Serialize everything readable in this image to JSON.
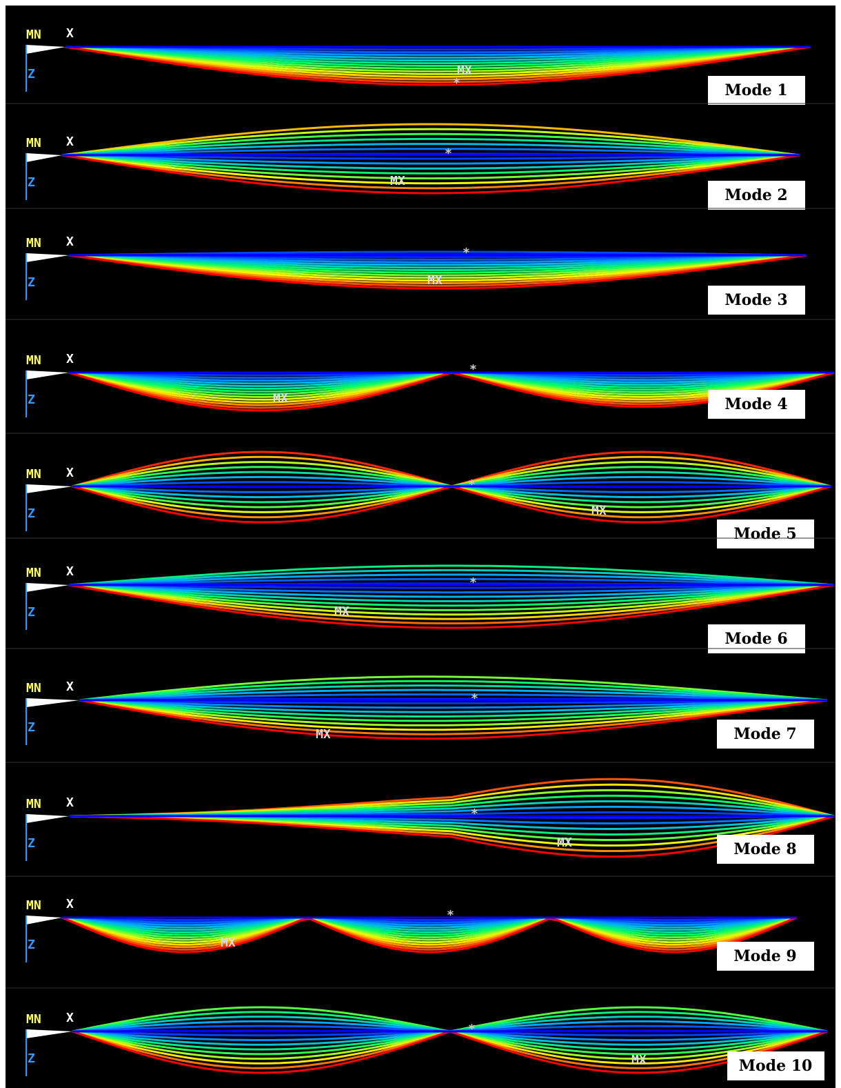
{
  "panels": [
    {
      "min": "MN",
      "x": "X",
      "z": "Z",
      "max": "MX",
      "mode": "Mode 1"
    },
    {
      "min": "MN",
      "x": "X",
      "z": "Z",
      "max": "MX",
      "mode": "Mode 2"
    },
    {
      "min": "MN",
      "x": "X",
      "z": "Z",
      "max": "MX",
      "mode": "Mode 3"
    },
    {
      "min": "MN",
      "x": "X",
      "z": "Z",
      "max": "MX",
      "mode": "Mode 4"
    },
    {
      "min": "MN",
      "x": "X",
      "z": "Z",
      "max": "MX",
      "mode": "Mode 5"
    },
    {
      "min": "MN",
      "x": "X",
      "z": "Z",
      "max": "MX",
      "mode": "Mode 6"
    },
    {
      "min": "MN",
      "x": "X",
      "z": "Z",
      "max": "MX",
      "mode": "Mode 7"
    },
    {
      "min": "MN",
      "x": "X",
      "z": "Z",
      "max": "MX",
      "mode": "Mode 8"
    },
    {
      "min": "MN",
      "x": "X",
      "z": "Z",
      "max": "MX",
      "mode": "Mode 9"
    },
    {
      "min": "MN",
      "x": "X",
      "z": "Z",
      "max": "MX",
      "mode": "Mode 10"
    }
  ]
}
